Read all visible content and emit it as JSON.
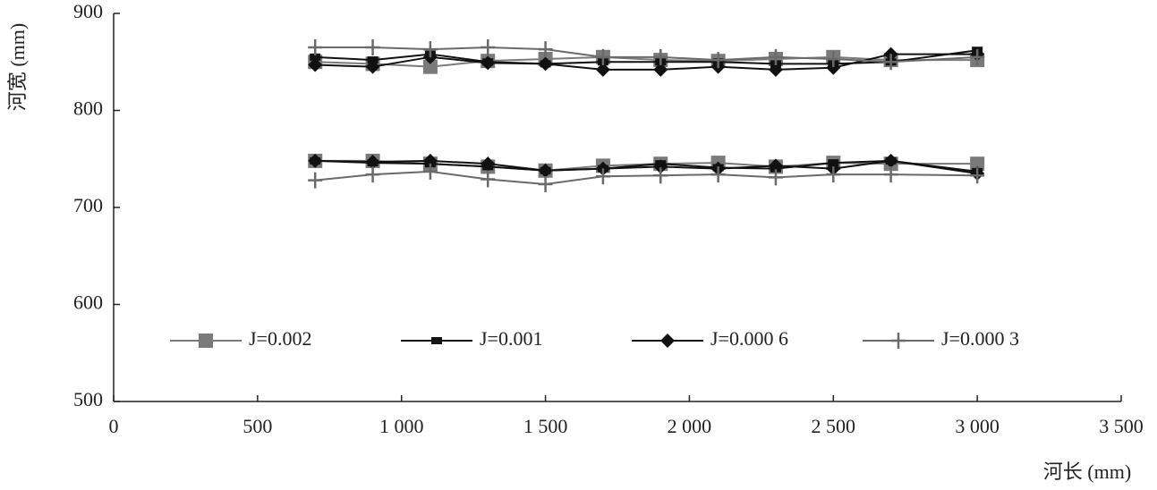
{
  "chart_data": {
    "type": "line",
    "x_label": "河长 (mm)",
    "y_label": "河宽 (mm)",
    "xlim": [
      0,
      3500
    ],
    "xticks": [
      0,
      500,
      {
        "value": 1000,
        "label": "1 000"
      },
      {
        "value": 1500,
        "label": "1 500"
      },
      {
        "value": 2000,
        "label": "2 000"
      },
      {
        "value": 2500,
        "label": "2 500"
      },
      {
        "value": 3000,
        "label": "3 000"
      },
      {
        "value": 3500,
        "label": "3 500"
      }
    ],
    "ylim": [
      500,
      900
    ],
    "yticks": [
      500,
      600,
      700,
      800,
      900
    ],
    "grid": false,
    "legend": "lower-center",
    "x": [
      700,
      900,
      1100,
      1300,
      1500,
      1700,
      1900,
      2100,
      2300,
      2500,
      2700,
      3000
    ],
    "series": [
      {
        "name": "J=0.002",
        "color": "#7a7a7a",
        "marker": "square",
        "values": [
          850,
          848,
          845,
          851,
          853,
          855,
          852,
          851,
          853,
          855,
          852,
          852
        ],
        "values_2": [
          748,
          748,
          745,
          742,
          738,
          743,
          745,
          746,
          742,
          746,
          745,
          745
        ]
      },
      {
        "name": "J=0.001",
        "color": "#111111",
        "marker": "small-square",
        "values": [
          855,
          852,
          858,
          850,
          848,
          850,
          850,
          850,
          848,
          848,
          850,
          862
        ],
        "values_2": [
          748,
          746,
          745,
          742,
          738,
          740,
          745,
          741,
          740,
          746,
          748,
          737
        ]
      },
      {
        "name": "J=0.000 6",
        "color": "#111111",
        "marker": "diamond",
        "values": [
          847,
          845,
          855,
          849,
          848,
          842,
          842,
          845,
          842,
          844,
          858,
          858
        ],
        "values_2": [
          748,
          747,
          748,
          745,
          738,
          740,
          742,
          740,
          743,
          740,
          748,
          735
        ]
      },
      {
        "name": "J=0.000 3",
        "color": "#6a6a6a",
        "marker": "plus",
        "values": [
          865,
          865,
          863,
          865,
          863,
          855,
          855,
          852,
          855,
          853,
          850,
          855
        ],
        "values_2": [
          728,
          734,
          737,
          729,
          724,
          732,
          733,
          734,
          731,
          734,
          734,
          733
        ]
      }
    ]
  }
}
